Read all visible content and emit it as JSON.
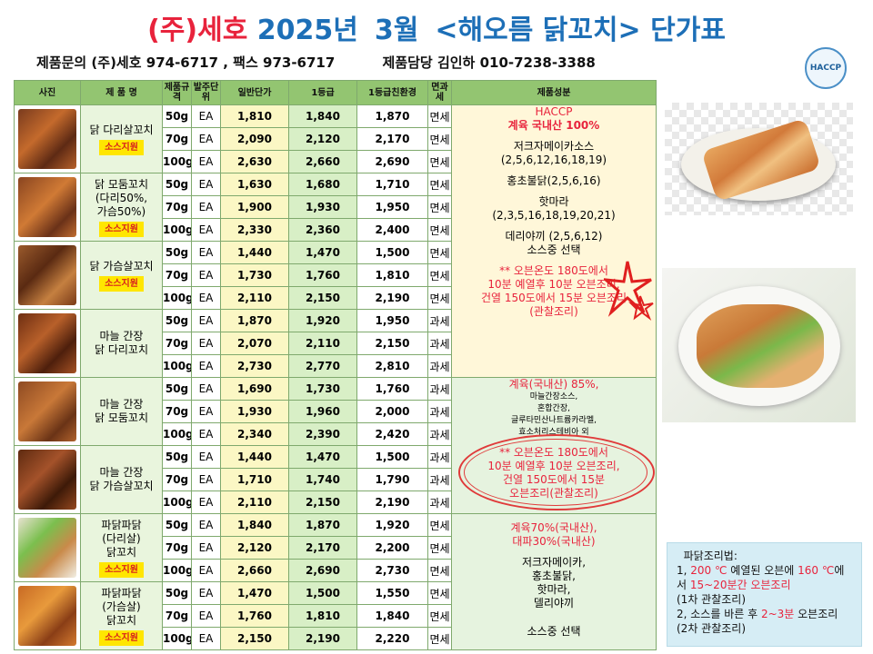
{
  "title": {
    "company": "(주)세호",
    "year": "2025년",
    "month": "3월",
    "product": "<해오름 닭꼬치> 단가표"
  },
  "contact": {
    "inquiry": "제품문의 (주)세호 974-6717 , 팩스 973-6717",
    "manager": "제품담당 김인하 010-7238-3388"
  },
  "haccp_logo": {
    "text": "HACCP"
  },
  "table": {
    "headers": [
      "사진",
      "제 품 명",
      "제품규격",
      "발주단위",
      "일반단가",
      "1등급",
      "1등급친환경",
      "면과세",
      "제품성분"
    ],
    "sauce_badge": "소스지원",
    "products": [
      {
        "name": "닭 다리살꼬치",
        "sauce": true,
        "rows": [
          {
            "size": "50g",
            "unit": "EA",
            "p1": "1,810",
            "p2": "1,840",
            "p3": "1,870",
            "tax": "면세"
          },
          {
            "size": "70g",
            "unit": "EA",
            "p1": "2,090",
            "p2": "2,120",
            "p3": "2,170",
            "tax": "면세"
          },
          {
            "size": "100g",
            "unit": "EA",
            "p1": "2,630",
            "p2": "2,660",
            "p3": "2,690",
            "tax": "면세"
          }
        ]
      },
      {
        "name": "닭 모둠꼬치\n(다리50%,\n가슴50%)",
        "sauce": true,
        "rows": [
          {
            "size": "50g",
            "unit": "EA",
            "p1": "1,630",
            "p2": "1,680",
            "p3": "1,710",
            "tax": "면세"
          },
          {
            "size": "70g",
            "unit": "EA",
            "p1": "1,900",
            "p2": "1,930",
            "p3": "1,950",
            "tax": "면세"
          },
          {
            "size": "100g",
            "unit": "EA",
            "p1": "2,330",
            "p2": "2,360",
            "p3": "2,400",
            "tax": "면세"
          }
        ]
      },
      {
        "name": "닭 가슴살꼬치",
        "sauce": true,
        "rows": [
          {
            "size": "50g",
            "unit": "EA",
            "p1": "1,440",
            "p2": "1,470",
            "p3": "1,500",
            "tax": "면세"
          },
          {
            "size": "70g",
            "unit": "EA",
            "p1": "1,730",
            "p2": "1,760",
            "p3": "1,810",
            "tax": "면세"
          },
          {
            "size": "100g",
            "unit": "EA",
            "p1": "2,110",
            "p2": "2,150",
            "p3": "2,190",
            "tax": "면세"
          }
        ]
      },
      {
        "name": "마늘 간장\n닭 다리꼬치",
        "sauce": false,
        "rows": [
          {
            "size": "50g",
            "unit": "EA",
            "p1": "1,870",
            "p2": "1,920",
            "p3": "1,950",
            "tax": "과세"
          },
          {
            "size": "70g",
            "unit": "EA",
            "p1": "2,070",
            "p2": "2,110",
            "p3": "2,150",
            "tax": "과세"
          },
          {
            "size": "100g",
            "unit": "EA",
            "p1": "2,730",
            "p2": "2,770",
            "p3": "2,810",
            "tax": "과세"
          }
        ]
      },
      {
        "name": "마늘 간장\n닭 모둠꼬치",
        "sauce": false,
        "rows": [
          {
            "size": "50g",
            "unit": "EA",
            "p1": "1,690",
            "p2": "1,730",
            "p3": "1,760",
            "tax": "과세"
          },
          {
            "size": "70g",
            "unit": "EA",
            "p1": "1,930",
            "p2": "1,960",
            "p3": "2,000",
            "tax": "과세"
          },
          {
            "size": "100g",
            "unit": "EA",
            "p1": "2,340",
            "p2": "2,390",
            "p3": "2,420",
            "tax": "과세"
          }
        ]
      },
      {
        "name": "마늘 간장\n닭 가슴살꼬치",
        "sauce": false,
        "rows": [
          {
            "size": "50g",
            "unit": "EA",
            "p1": "1,440",
            "p2": "1,470",
            "p3": "1,500",
            "tax": "과세"
          },
          {
            "size": "70g",
            "unit": "EA",
            "p1": "1,710",
            "p2": "1,740",
            "p3": "1,790",
            "tax": "과세"
          },
          {
            "size": "100g",
            "unit": "EA",
            "p1": "2,110",
            "p2": "2,150",
            "p3": "2,190",
            "tax": "과세"
          }
        ]
      },
      {
        "name": "파닭파닭\n(다리살)\n닭꼬치",
        "sauce": true,
        "rows": [
          {
            "size": "50g",
            "unit": "EA",
            "p1": "1,840",
            "p2": "1,870",
            "p3": "1,920",
            "tax": "면세"
          },
          {
            "size": "70g",
            "unit": "EA",
            "p1": "2,120",
            "p2": "2,170",
            "p3": "2,200",
            "tax": "면세"
          },
          {
            "size": "100g",
            "unit": "EA",
            "p1": "2,660",
            "p2": "2,690",
            "p3": "2,730",
            "tax": "면세"
          }
        ]
      },
      {
        "name": "파닭파닭\n(가슴살)\n닭꼬치",
        "sauce": true,
        "rows": [
          {
            "size": "50g",
            "unit": "EA",
            "p1": "1,470",
            "p2": "1,500",
            "p3": "1,550",
            "tax": "면세"
          },
          {
            "size": "70g",
            "unit": "EA",
            "p1": "1,760",
            "p2": "1,810",
            "p3": "1,840",
            "tax": "면세"
          },
          {
            "size": "100g",
            "unit": "EA",
            "p1": "2,150",
            "p2": "2,190",
            "p3": "2,220",
            "tax": "면세"
          }
        ]
      }
    ]
  },
  "info1": {
    "haccp": "HACCP",
    "origin": "계육 국내산 100%",
    "sauce1": "저크자메이카소스",
    "sauce1_codes": "(2,5,6,12,16,18,19)",
    "sauce2": "홍초불닭(2,5,6,16)",
    "sauce3": "핫마라",
    "sauce3_codes": "(2,3,5,16,18,19,20,21)",
    "sauce4": "데리야끼 (2,5,6,12)",
    "sauce_choice": "소스중 선택",
    "cook": "** 오븐온도 180도에서\n10분 예열후 10분 오븐조리,\n건열 150도에서 15분 오븐조리\n(관찰조리)"
  },
  "info2": {
    "origin": "계육(국내산) 85%,",
    "ingredients": "마늘간장소스,\n혼합간장,\n글루타민산나트륨카라멜,\n효소처리스테비아 외",
    "cook": "** 오븐온도 180도에서\n10분 예열후 10분 오븐조리,\n건열 150도에서 15분\n오븐조리(관찰조리)"
  },
  "info3": {
    "origin": "계육70%(국내산),\n대파30%(국내산)",
    "sauces": "저크자메이카,\n홍초불닭,\n핫마라,\n델리야끼",
    "choice": "소스중 선택"
  },
  "note": {
    "title": "파닭조리법:",
    "l1a": "1, ",
    "l1b": "200 ℃",
    "l1c": " 예열된 오븐에 ",
    "l1d": "160 ℃",
    "l1e": "에",
    "l2a": "서 ",
    "l2b": "15~20분간 오븐조리",
    "l3": "(1차 관찰조리)",
    "l4a": "2, 소스를 바른 후 ",
    "l4b": "2~3분",
    "l4c": " 오븐조리",
    "l5": "(2차 관찰조리)"
  }
}
